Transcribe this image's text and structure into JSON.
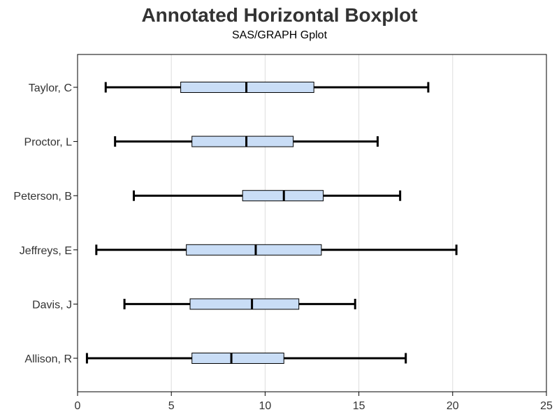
{
  "chart_data": {
    "type": "boxplot",
    "orientation": "horizontal",
    "title": "Annotated Horizontal Boxplot",
    "subtitle": "SAS/GRAPH Gplot",
    "xlabel": "",
    "ylabel": "",
    "xlim": [
      0,
      25
    ],
    "x_ticks": [
      0,
      5,
      10,
      15,
      20,
      25
    ],
    "grid": "vertical",
    "categories": [
      "Taylor, C",
      "Proctor, L",
      "Peterson, B",
      "Jeffreys, E",
      "Davis, J",
      "Allison, R"
    ],
    "boxes": [
      {
        "category": "Taylor, C",
        "min": 1.5,
        "q1": 5.5,
        "median": 9.0,
        "q3": 12.6,
        "max": 18.7
      },
      {
        "category": "Proctor, L",
        "min": 2.0,
        "q1": 6.1,
        "median": 9.0,
        "q3": 11.5,
        "max": 16.0
      },
      {
        "category": "Peterson, B",
        "min": 3.0,
        "q1": 8.8,
        "median": 11.0,
        "q3": 13.1,
        "max": 17.2
      },
      {
        "category": "Jeffreys, E",
        "min": 1.0,
        "q1": 5.8,
        "median": 9.5,
        "q3": 13.0,
        "max": 20.2
      },
      {
        "category": "Davis, J",
        "min": 2.5,
        "q1": 6.0,
        "median": 9.3,
        "q3": 11.8,
        "max": 14.8
      },
      {
        "category": "Allison, R",
        "min": 0.5,
        "q1": 6.1,
        "median": 8.2,
        "q3": 11.0,
        "max": 17.5
      }
    ],
    "colors": {
      "box_fill": "#C9DDF6",
      "box_stroke": "#000000",
      "whisker": "#000000",
      "grid": "#DDDDDD",
      "frame": "#000000"
    }
  }
}
